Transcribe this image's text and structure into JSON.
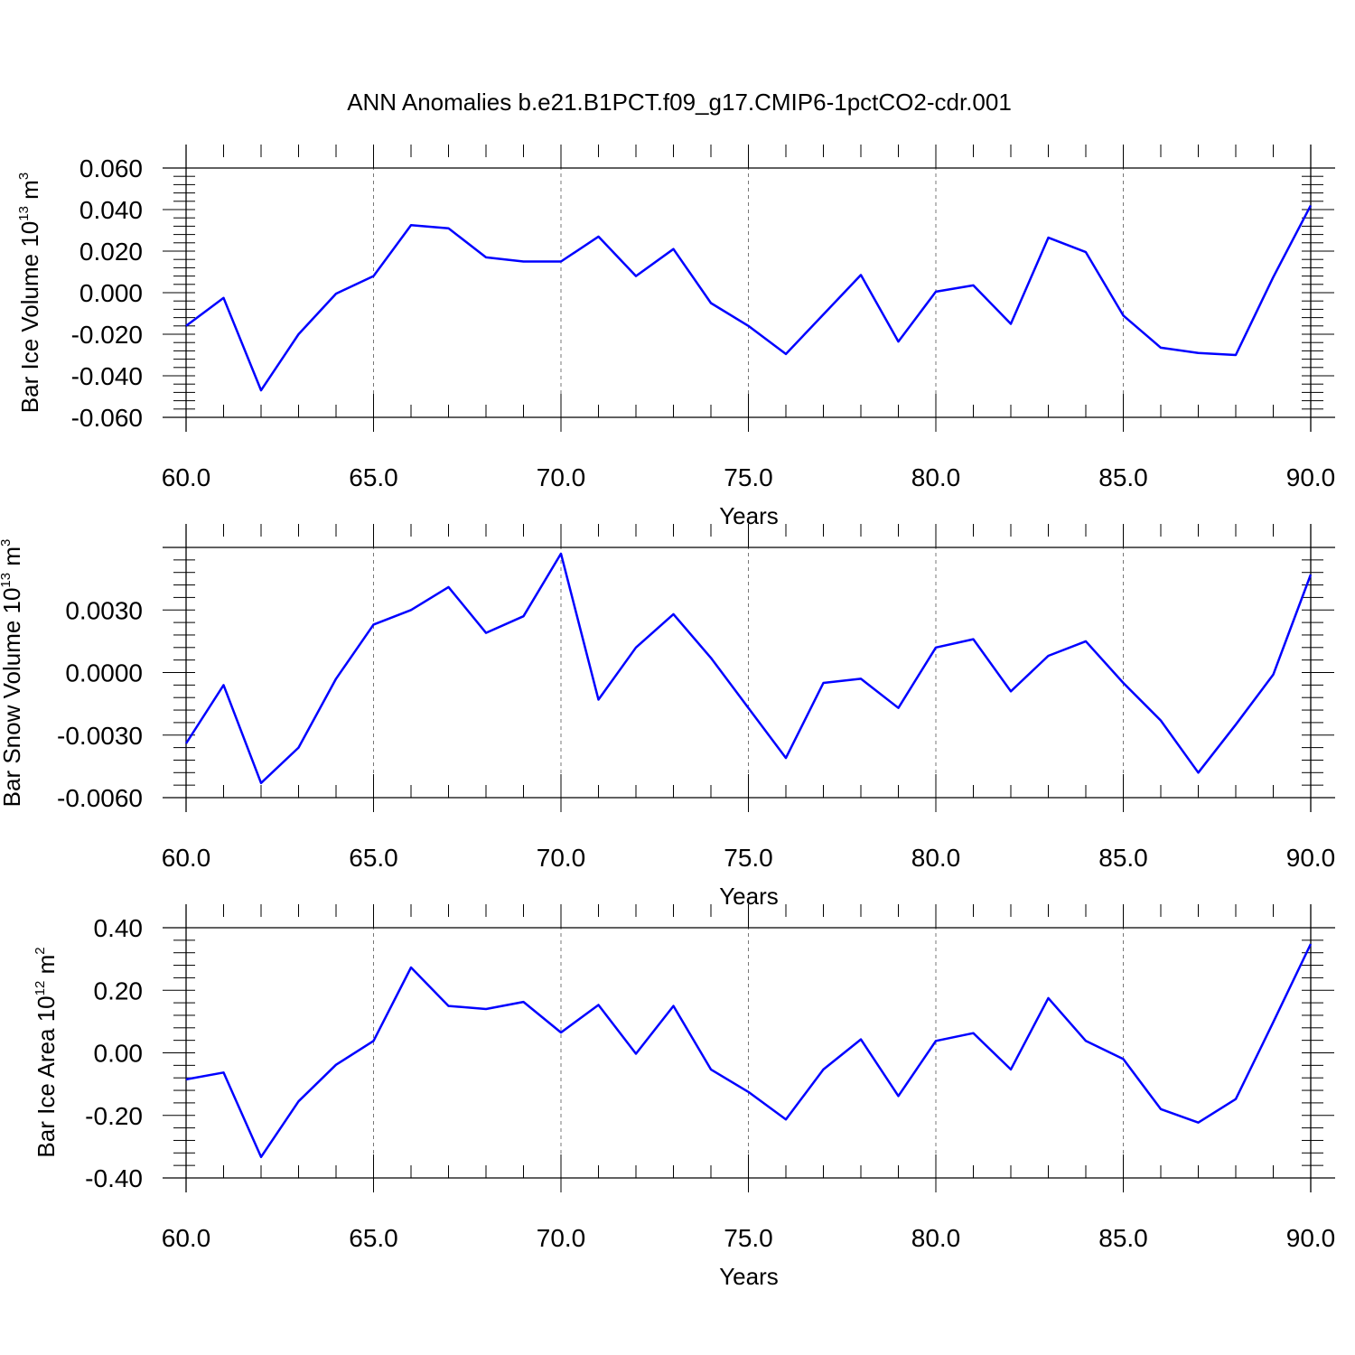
{
  "chart_data": [
    {
      "type": "line",
      "title": "ANN Anomalies b.e21.B1PCT.f09_g17.CMIP6-1pctCO2-cdr.001",
      "xlabel": "Years",
      "ylabel": {
        "base": "Bar Ice Volume 10",
        "exp1": "13",
        "unit": " m",
        "exp2": "3"
      },
      "xlim": [
        60,
        90
      ],
      "ylim": [
        -0.06,
        0.06
      ],
      "x_ticks": [
        "60.0",
        "65.0",
        "70.0",
        "75.0",
        "80.0",
        "85.0",
        "90.0"
      ],
      "y_ticks": [
        {
          "value": 0.06,
          "label": "0.060"
        },
        {
          "value": 0.04,
          "label": "0.040"
        },
        {
          "value": 0.02,
          "label": "0.020"
        },
        {
          "value": 0.0,
          "label": "0.000"
        },
        {
          "value": -0.02,
          "label": "-0.020"
        },
        {
          "value": -0.04,
          "label": "-0.040"
        },
        {
          "value": -0.06,
          "label": "-0.060"
        }
      ],
      "grid": "vertical dashed at major x ticks",
      "color": "#0000ff",
      "x": [
        60,
        61,
        62,
        63,
        64,
        65,
        66,
        67,
        68,
        69,
        70,
        71,
        72,
        73,
        74,
        75,
        76,
        77,
        78,
        79,
        80,
        81,
        82,
        83,
        84,
        85,
        86,
        87,
        88,
        89,
        90
      ],
      "values": [
        -0.016,
        -0.0025,
        -0.047,
        -0.02,
        -0.0005,
        0.008,
        0.0325,
        0.031,
        0.017,
        0.015,
        0.015,
        0.027,
        0.008,
        0.021,
        -0.005,
        -0.016,
        -0.0295,
        -0.0105,
        0.0085,
        -0.0235,
        0.0005,
        0.0035,
        -0.015,
        0.0265,
        0.0195,
        -0.011,
        -0.0265,
        -0.029,
        -0.03,
        0.0075,
        0.042
      ]
    },
    {
      "type": "line",
      "title": "",
      "xlabel": "Years",
      "ylabel": {
        "base": "Bar Snow Volume 10",
        "exp1": "13",
        "unit": " m",
        "exp2": "3"
      },
      "xlim": [
        60,
        90
      ],
      "ylim": [
        -0.006,
        0.006
      ],
      "x_ticks": [
        "60.0",
        "65.0",
        "70.0",
        "75.0",
        "80.0",
        "85.0",
        "90.0"
      ],
      "y_ticks": [
        {
          "value": 0.003,
          "label": "0.0030"
        },
        {
          "value": 0.0,
          "label": "0.0000"
        },
        {
          "value": -0.003,
          "label": "-0.0030"
        },
        {
          "value": -0.006,
          "label": "-0.0060"
        }
      ],
      "grid": "vertical dashed at major x ticks",
      "color": "#0000ff",
      "x": [
        60,
        61,
        62,
        63,
        64,
        65,
        66,
        67,
        68,
        69,
        70,
        71,
        72,
        73,
        74,
        75,
        76,
        77,
        78,
        79,
        80,
        81,
        82,
        83,
        84,
        85,
        86,
        87,
        88,
        89,
        90
      ],
      "values": [
        -0.0034,
        -0.0006,
        -0.0053,
        -0.0036,
        -0.0003,
        0.0023,
        0.003,
        0.0041,
        0.0019,
        0.0027,
        0.0057,
        -0.0013,
        0.0012,
        0.0028,
        0.0007,
        -0.0017,
        -0.0041,
        -0.0005,
        -0.0003,
        -0.0017,
        0.0012,
        0.0016,
        -0.0009,
        0.0008,
        0.0015,
        -0.0005,
        -0.0023,
        -0.0048,
        -0.0025,
        -0.0001,
        0.0047
      ]
    },
    {
      "type": "line",
      "title": "",
      "xlabel": "Years",
      "ylabel": {
        "base": "Bar Ice Area 10",
        "exp1": "12",
        "unit": " m",
        "exp2": "2"
      },
      "xlim": [
        60,
        90
      ],
      "ylim": [
        -0.4,
        0.4
      ],
      "x_ticks": [
        "60.0",
        "65.0",
        "70.0",
        "75.0",
        "80.0",
        "85.0",
        "90.0"
      ],
      "y_ticks": [
        {
          "value": 0.4,
          "label": "0.40"
        },
        {
          "value": 0.2,
          "label": "0.20"
        },
        {
          "value": 0.0,
          "label": "0.00"
        },
        {
          "value": -0.2,
          "label": "-0.20"
        },
        {
          "value": -0.4,
          "label": "-0.40"
        }
      ],
      "grid": "vertical dashed at major x ticks",
      "color": "#0000ff",
      "x": [
        60,
        61,
        62,
        63,
        64,
        65,
        66,
        67,
        68,
        69,
        70,
        71,
        72,
        73,
        74,
        75,
        76,
        77,
        78,
        79,
        80,
        81,
        82,
        83,
        84,
        85,
        86,
        87,
        88,
        89,
        90
      ],
      "values": [
        -0.085,
        -0.063,
        -0.333,
        -0.155,
        -0.038,
        0.038,
        0.273,
        0.15,
        0.14,
        0.163,
        0.065,
        0.153,
        -0.003,
        0.15,
        -0.053,
        -0.125,
        -0.213,
        -0.053,
        0.043,
        -0.138,
        0.038,
        0.063,
        -0.053,
        0.175,
        0.038,
        -0.02,
        -0.18,
        -0.223,
        -0.148,
        0.098,
        0.348
      ]
    }
  ]
}
